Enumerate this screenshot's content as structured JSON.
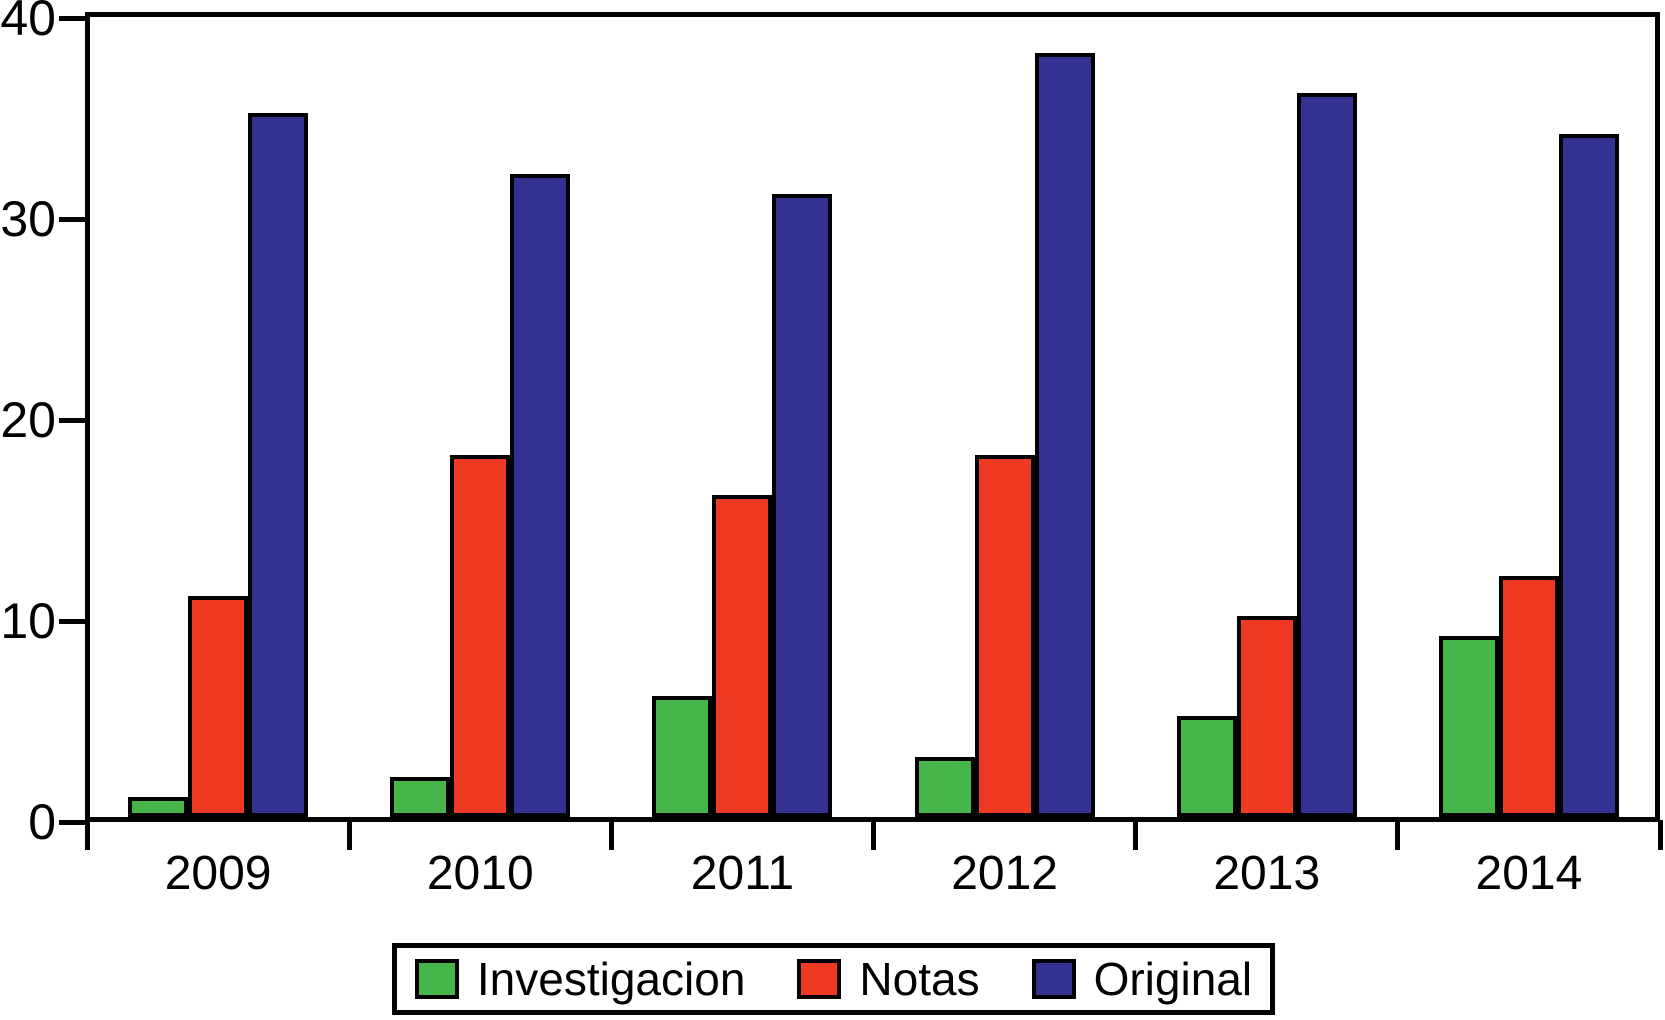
{
  "chart_data": {
    "type": "bar",
    "title": "",
    "xlabel": "",
    "ylabel": "",
    "categories": [
      "2009",
      "2010",
      "2011",
      "2012",
      "2013",
      "2014"
    ],
    "series": [
      {
        "name": "Investigacion",
        "color": "#45B449",
        "values": [
          1,
          2,
          6,
          3,
          5,
          9
        ]
      },
      {
        "name": "Notas",
        "color": "#EE3A23",
        "values": [
          11,
          18,
          16,
          18,
          10,
          12
        ]
      },
      {
        "name": "Original",
        "color": "#333293",
        "values": [
          35,
          32,
          31,
          38,
          36,
          34
        ]
      }
    ],
    "ylim": [
      0,
      40
    ],
    "yticks": [
      0,
      10,
      20,
      30,
      40
    ],
    "grid": false,
    "legend_position": "bottom",
    "axis_color": "#000000",
    "background_color": "#FFFFFF"
  }
}
